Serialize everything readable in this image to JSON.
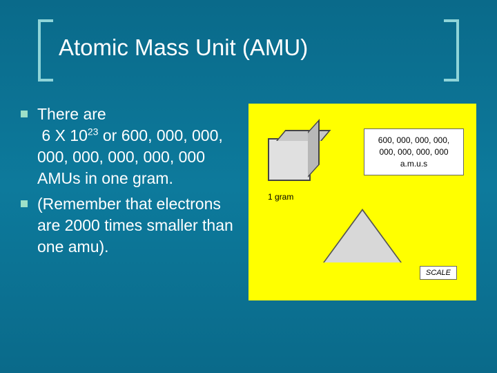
{
  "title": "Atomic Mass Unit (AMU)",
  "bullets": [
    {
      "html": "There are<br>&nbsp;6 X 10<sup>23</sup> or 600, 000, 000, 000, 000, 000, 000, 000 AMUs in one gram."
    },
    {
      "html": "(Remember that electrons are 2000 times smaller than one amu)."
    }
  ],
  "figure": {
    "cube_label": "1 gram",
    "amu_text": "600, 000, 000, 000, 000, 000, 000, 000 a.m.u.s",
    "scale_label": "SCALE",
    "background_color": "#ffff00"
  },
  "colors": {
    "slide_bg": "#0d7a9c",
    "bracket": "#8fd4d8",
    "bullet_marker": "#9de0c8",
    "text": "#ffffff"
  }
}
